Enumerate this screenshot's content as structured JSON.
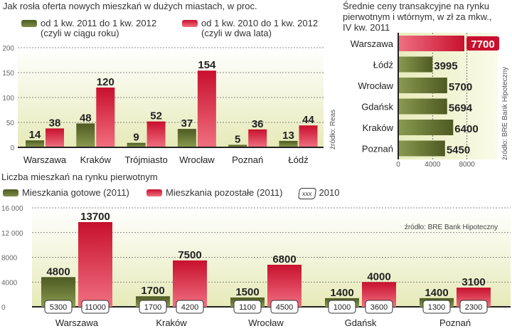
{
  "colors": {
    "green_dark": "#4e5a22",
    "green_light": "#8a9a50",
    "red_dark": "#c8102e",
    "red_light": "#f07080"
  },
  "chart_data": [
    {
      "type": "bar",
      "title": "Jak rosła oferta nowych mieszkań w dużych miastach, w proc.",
      "categories": [
        "Warszawa",
        "Kraków",
        "Trójmiasto",
        "Wrocław",
        "Poznań",
        "Łódź"
      ],
      "series": [
        {
          "name": "od 1 kw. 2011 do 1 kw. 2012",
          "note": "(czyli w ciągu roku)",
          "values": [
            14,
            48,
            9,
            37,
            5,
            13
          ]
        },
        {
          "name": "od 1 kw. 2010 do 1 kw. 2012",
          "note": "(czyli w dwa lata)",
          "values": [
            38,
            120,
            52,
            154,
            36,
            44
          ]
        }
      ],
      "ylim": [
        0,
        200
      ],
      "yticks": [
        0,
        50,
        100,
        150,
        200
      ],
      "source": "źródło: Reas",
      "grid": true
    },
    {
      "type": "bar",
      "orientation": "horizontal",
      "title": [
        "Średnie ceny transakcyjne na rynku",
        "pierwotnym i wtórnym, w zł za mkw.,",
        "IV kw. 2011"
      ],
      "categories": [
        "Warszawa",
        "Łódź",
        "Wrocław",
        "Gdańsk",
        "Kraków",
        "Poznań"
      ],
      "values": [
        7700,
        3995,
        5700,
        5694,
        6400,
        5450
      ],
      "highlight": "Warszawa",
      "xlim": [
        0,
        9000
      ],
      "xticks": [
        0,
        4000,
        8000
      ],
      "xtick_labels": [
        "0",
        "4000",
        "8000"
      ],
      "source": "źródło: BRE Bank Hipoteczny"
    },
    {
      "type": "bar",
      "title": "Liczba mieszkań na rynku pierwotnym",
      "categories": [
        "Warszawa",
        "Kraków",
        "Wrocław",
        "Gdańsk",
        "Poznań"
      ],
      "series": [
        {
          "name": "Mieszkania gotowe (2011)",
          "values": [
            4800,
            1700,
            1500,
            1400,
            1400
          ],
          "values_2010": [
            5300,
            1700,
            1100,
            1000,
            1300
          ]
        },
        {
          "name": "Mieszkania pozostałe (2011)",
          "values": [
            13700,
            7500,
            6800,
            4000,
            3100
          ],
          "values_2010": [
            11000,
            4200,
            4500,
            3600,
            2300
          ]
        }
      ],
      "legend_2010": {
        "box": "xxx",
        "label": "2010"
      },
      "ylim": [
        0,
        16000
      ],
      "yticks": [
        0,
        4000,
        8000,
        12000,
        16000
      ],
      "ytick_labels": [
        "0",
        "4000",
        "8000",
        "12 000",
        "16 000"
      ],
      "source": "źródło: BRE Bank Hipoteczny",
      "grid": true
    }
  ]
}
